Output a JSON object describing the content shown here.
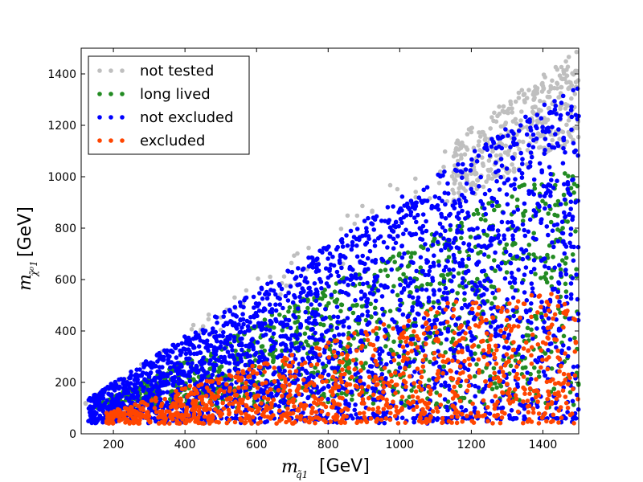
{
  "chart_data": {
    "type": "scatter",
    "title": "",
    "xlabel": {
      "symbol": "m",
      "subscript": "q̃1",
      "unit": "[GeV]"
    },
    "ylabel": {
      "symbol": "m",
      "subscript": "χ̃⁰1",
      "unit": "[GeV]"
    },
    "xlim": [
      110,
      1500
    ],
    "ylim": [
      0,
      1500
    ],
    "xticks": [
      200,
      400,
      600,
      800,
      1000,
      1200,
      1400
    ],
    "yticks": [
      0,
      200,
      400,
      600,
      800,
      1000,
      1200,
      1400
    ],
    "grid": false,
    "legend_position": "top-left",
    "series": [
      {
        "name": "not tested",
        "color": "#bfbfbf",
        "region": {
          "x_min": 120,
          "x_max": 1500,
          "y_min": 100,
          "y_max_slope": 1.0,
          "y_max_offset": 0,
          "x_focus_min": 1150
        }
      },
      {
        "name": "long lived",
        "color": "#228b22",
        "region": {
          "x_min": 150,
          "x_max": 1500,
          "y_min": 100,
          "y_max_slope": 0.72,
          "y_max_offset": 0
        }
      },
      {
        "name": "not excluded",
        "color": "#0000ff",
        "region": {
          "x_min": 130,
          "x_max": 1500,
          "y_min": 40,
          "y_max_slope": 0.9,
          "y_max_offset": 20
        }
      },
      {
        "name": "excluded",
        "color": "#ff4500",
        "region": {
          "x_min": 180,
          "x_max": 1500,
          "y_min": 40,
          "y_max_slope": 0.45,
          "y_max_offset": 0,
          "y_cap": 560
        }
      }
    ]
  }
}
